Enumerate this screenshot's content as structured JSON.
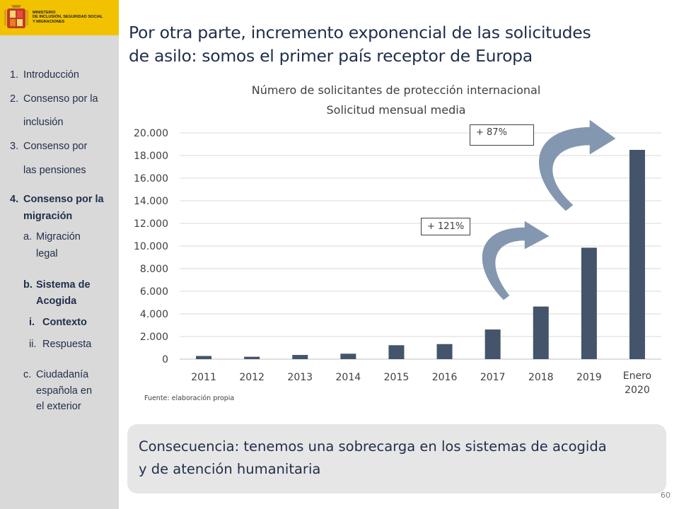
{
  "header": {
    "ministry_lines": [
      "MINISTERIO",
      "DE INCLUSIÓN, SEGURIDAD SOCIAL",
      "Y MIGRACIONES"
    ],
    "brand_color": "#f2c200"
  },
  "sidebar": {
    "items": [
      {
        "num": "1.",
        "text": "Introducción"
      },
      {
        "num": "2.",
        "text": "Consenso por la"
      },
      {
        "num": "",
        "text": "inclusión"
      },
      {
        "num": "3.",
        "text": "Consenso por"
      },
      {
        "num": "",
        "text": "las pensiones"
      },
      {
        "num": "4.",
        "text": "Consenso por la"
      },
      {
        "num": "",
        "text": "migración"
      },
      {
        "num": "a.",
        "text": "Migración"
      },
      {
        "num": "",
        "text": "legal"
      },
      {
        "num": "b.",
        "text": "Sistema de"
      },
      {
        "num": "",
        "text": "Acogida"
      },
      {
        "num": "i.",
        "text": "Contexto"
      },
      {
        "num": "ii.",
        "text": "Respuesta"
      },
      {
        "num": "c.",
        "text": "Ciudadanía"
      },
      {
        "num": "",
        "text": "española en"
      },
      {
        "num": "",
        "text": "el exterior"
      }
    ]
  },
  "slide": {
    "title_line1": "Por otra parte, incremento exponencial de las solicitudes",
    "title_line2": "de asilo: somos el primer país receptor de Europa",
    "source": "Fuente:  elaboración propia",
    "consequence_line1": "Consecuencia: tenemos una sobrecarga en los sistemas de acogida",
    "consequence_line2": "y de atención humanitaria",
    "page_number": "60",
    "callout_1": "+ 121%",
    "callout_2": "+ 87%"
  },
  "chart_data": {
    "type": "bar",
    "title": "Número de solicitantes de protección internacional",
    "subtitle": "Solicitud mensual media",
    "categories": [
      "2011",
      "2012",
      "2013",
      "2014",
      "2015",
      "2016",
      "2017",
      "2018",
      "2019",
      "Enero 2020"
    ],
    "values": [
      280,
      210,
      370,
      480,
      1230,
      1330,
      2620,
      4650,
      9850,
      18500
    ],
    "ylim": [
      0,
      20000
    ],
    "yticks": [
      "0",
      "2.000",
      "4.000",
      "6.000",
      "8.000",
      "10.000",
      "12.000",
      "14.000",
      "16.000",
      "18.000",
      "20.000"
    ],
    "grid": true,
    "bar_color": "#44546a",
    "arrow_color": "#8497b0"
  }
}
